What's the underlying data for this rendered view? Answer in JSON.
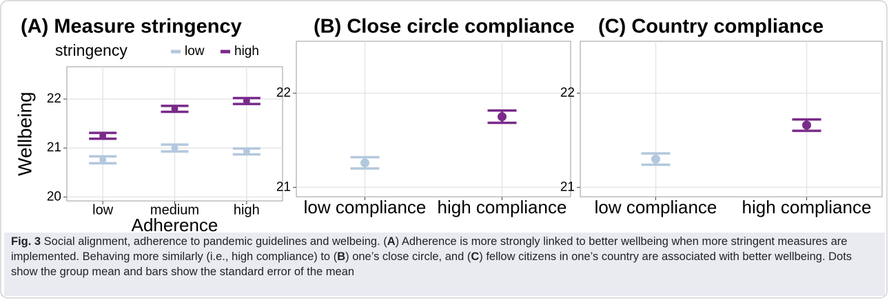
{
  "chart_data": [
    {
      "type": "errorbar",
      "title": "(A) Measure stringency",
      "x_label": "Adherence",
      "y_label": "Wellbeing",
      "legend_title": "stringency",
      "categories": [
        "low",
        "medium",
        "high"
      ],
      "series": [
        {
          "name": "low",
          "color": "#b3c8dd",
          "values": [
            20.76,
            21.0,
            20.93
          ],
          "errors": [
            0.07,
            0.07,
            0.06
          ]
        },
        {
          "name": "high",
          "color": "#7a2a8a",
          "values": [
            21.25,
            21.8,
            21.96
          ],
          "errors": [
            0.06,
            0.06,
            0.06
          ]
        }
      ],
      "ylim": [
        19.92,
        22.66
      ],
      "yticks": [
        20,
        21,
        22
      ],
      "grid": true
    },
    {
      "type": "errorbar",
      "title": "(B) Close circle compliance",
      "categories": [
        "low compliance",
        "high compliance"
      ],
      "values": [
        21.26,
        21.75
      ],
      "errors": [
        0.06,
        0.065
      ],
      "colors": [
        "#b3c8dd",
        "#7a2a8a"
      ],
      "ylim": [
        20.9,
        22.55
      ],
      "yticks": [
        21,
        22
      ],
      "grid": true
    },
    {
      "type": "errorbar",
      "title": "(C) Country compliance",
      "categories": [
        "low compliance",
        "high compliance"
      ],
      "values": [
        21.3,
        21.66
      ],
      "errors": [
        0.06,
        0.06
      ],
      "colors": [
        "#b3c8dd",
        "#7a2a8a"
      ],
      "ylim": [
        20.9,
        22.55
      ],
      "yticks": [
        21,
        22
      ],
      "grid": true
    }
  ],
  "caption": {
    "label": "Fig. 3",
    "parts": [
      " Social alignment, adherence to pandemic guidelines and welbeing. (",
      "A",
      ") Adherence is more strongly linked to better wellbeing when more stringent measures are implemented. Behaving more similarly (i.e., high compliance) to (",
      "B",
      ") one’s close circle, and (",
      "C",
      ") fellow citizens in one’s country are associated with better wellbeing. Dots show the group mean and bars show the standard error of the mean"
    ]
  }
}
